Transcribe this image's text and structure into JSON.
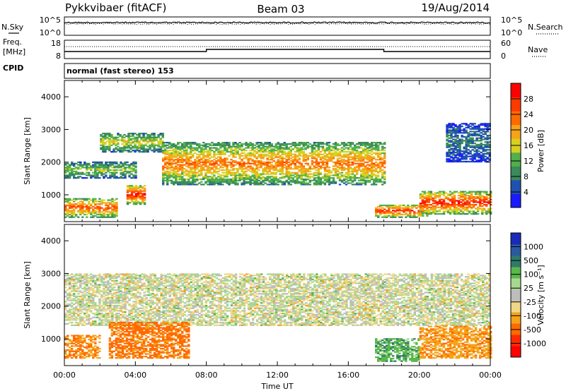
{
  "header": {
    "station": "Pykkvibaer (fitACF)",
    "beam": "Beam 03",
    "date": "19/Aug/2014"
  },
  "nsky_panel": {
    "left_label": "N.Sky",
    "left_ticks": [
      "10^5",
      "10^0"
    ],
    "right_label": "N.Search",
    "right_ticks": [
      "10^5",
      "10^0"
    ]
  },
  "freq_panel": {
    "left_label_1": "Freq.",
    "left_label_2": "[MHz]",
    "left_ticks": [
      "18",
      "8"
    ],
    "right_label": "Nave",
    "right_ticks": [
      "60",
      "0"
    ]
  },
  "cpid": {
    "label": "CPID",
    "text": "normal (fast stereo) 153"
  },
  "time_axis": {
    "ticks": [
      "00:00",
      "04:00",
      "08:00",
      "12:00",
      "16:00",
      "20:00",
      "00:00"
    ],
    "label": "Time UT"
  },
  "colors": {
    "power_scale": [
      "#1a1aff",
      "#2050b0",
      "#3a8a5a",
      "#52b04a",
      "#d8d020",
      "#f5a31a",
      "#ff6a00",
      "#ff3a00",
      "#ff0000"
    ],
    "velocity_scale": [
      "#1a2ab8",
      "#2a5aa0",
      "#2f7a6a",
      "#5ab84a",
      "#a8d890",
      "#bdbdbd",
      "#f0d888",
      "#f5a31a",
      "#ff6a00",
      "#ff2a00",
      "#ff0000"
    ]
  },
  "chart_data": [
    {
      "type": "heatmap",
      "title": "",
      "xlabel": "",
      "ylabel": "Slant Range [km]",
      "xlim": [
        "00:00",
        "24:00"
      ],
      "ylim": [
        180,
        4500
      ],
      "yticks": [
        "1000",
        "2000",
        "3000",
        "4000"
      ],
      "colorbar": {
        "label": "Power [dB]",
        "ticks": [
          "4",
          "8",
          "12",
          "16",
          "20",
          "24",
          "28"
        ],
        "range": [
          0,
          30
        ]
      },
      "echo_regions": [
        {
          "t_start": 0.0,
          "t_end": 4.0,
          "range_low": 1500,
          "range_high": 2000,
          "peak_power_db": 14
        },
        {
          "t_start": 2.0,
          "t_end": 5.5,
          "range_low": 2300,
          "range_high": 2900,
          "peak_power_db": 16
        },
        {
          "t_start": 5.5,
          "t_end": 18.0,
          "range_low": 1300,
          "range_high": 2600,
          "peak_power_db": 22
        },
        {
          "t_start": 3.5,
          "t_end": 4.5,
          "range_low": 700,
          "range_high": 1300,
          "peak_power_db": 28
        },
        {
          "t_start": 0.0,
          "t_end": 3.0,
          "range_low": 300,
          "range_high": 900,
          "peak_power_db": 24
        },
        {
          "t_start": 17.5,
          "t_end": 20.5,
          "range_low": 300,
          "range_high": 700,
          "peak_power_db": 26
        },
        {
          "t_start": 20.0,
          "t_end": 24.0,
          "range_low": 400,
          "range_high": 1100,
          "peak_power_db": 28
        },
        {
          "t_start": 21.5,
          "t_end": 24.0,
          "range_low": 2000,
          "range_high": 3200,
          "peak_power_db": 8
        }
      ]
    },
    {
      "type": "heatmap",
      "title": "",
      "xlabel": "Time UT",
      "ylabel": "Slant Range [km]",
      "xlim": [
        "00:00",
        "24:00"
      ],
      "ylim": [
        180,
        4500
      ],
      "yticks": [
        "1000",
        "2000",
        "3000",
        "4000"
      ],
      "colorbar": {
        "label": "Velocity [m s⁻¹]",
        "ticks": [
          "1000",
          "500",
          "100",
          "25",
          "-25",
          "-100",
          "-500",
          "-1000"
        ],
        "range": [
          -1000,
          1000
        ]
      },
      "echo_regions": [
        {
          "t_start": 0.0,
          "t_end": 24.0,
          "range_low": 1400,
          "range_high": 3000,
          "velocity": 0
        },
        {
          "t_start": 2.5,
          "t_end": 7.0,
          "range_low": 400,
          "range_high": 1500,
          "velocity": -300
        },
        {
          "t_start": 0.0,
          "t_end": 2.0,
          "range_low": 400,
          "range_high": 1100,
          "velocity": -250
        },
        {
          "t_start": 17.5,
          "t_end": 20.0,
          "range_low": 300,
          "range_high": 1000,
          "velocity": 200
        },
        {
          "t_start": 20.0,
          "t_end": 24.0,
          "range_low": 400,
          "range_high": 1400,
          "velocity": -200
        }
      ]
    }
  ]
}
